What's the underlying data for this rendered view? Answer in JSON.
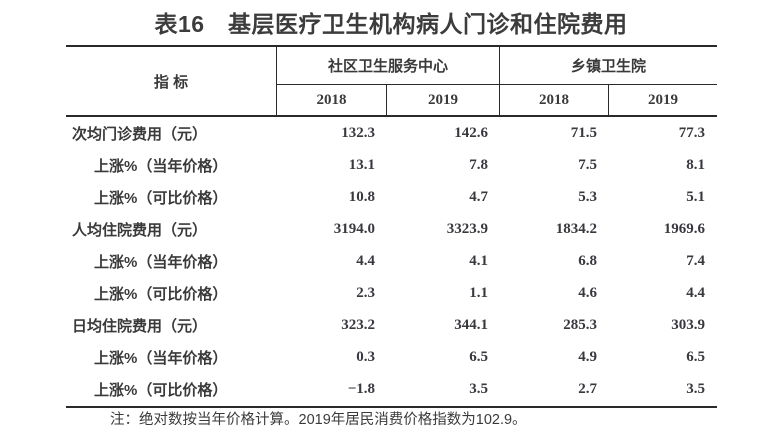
{
  "title": "表16　基层医疗卫生机构病人门诊和住院费用",
  "table": {
    "indicator_header": "指 标",
    "groups": [
      {
        "label": "社区卫生服务中心",
        "years": [
          "2018",
          "2019"
        ]
      },
      {
        "label": "乡镇卫生院",
        "years": [
          "2018",
          "2019"
        ]
      }
    ],
    "rows": [
      {
        "label": "次均门诊费用（元）",
        "values": [
          "132.3",
          "142.6",
          "71.5",
          "77.3"
        ]
      },
      {
        "label": "上涨%（当年价格）",
        "values": [
          "13.1",
          "7.8",
          "7.5",
          "8.1"
        ]
      },
      {
        "label": "上涨%（可比价格）",
        "values": [
          "10.8",
          "4.7",
          "5.3",
          "5.1"
        ]
      },
      {
        "label": "人均住院费用（元）",
        "values": [
          "3194.0",
          "3323.9",
          "1834.2",
          "1969.6"
        ]
      },
      {
        "label": "上涨%（当年价格）",
        "values": [
          "4.4",
          "4.1",
          "6.8",
          "7.4"
        ]
      },
      {
        "label": "上涨%（可比价格）",
        "values": [
          "2.3",
          "1.1",
          "4.6",
          "4.4"
        ]
      },
      {
        "label": "日均住院费用（元）",
        "values": [
          "323.2",
          "344.1",
          "285.3",
          "303.9"
        ]
      },
      {
        "label": "上涨%（当年价格）",
        "values": [
          "0.3",
          "6.5",
          "4.9",
          "6.5"
        ]
      },
      {
        "label": "上涨%（可比价格）",
        "values": [
          "−1.8",
          "3.5",
          "2.7",
          "3.5"
        ]
      }
    ]
  },
  "footnote": "注：绝对数按当年价格计算。2019年居民消费价格指数为102.9。",
  "colors": {
    "text": "#3a3a3a",
    "line": "#2a2a2a",
    "background": "#ffffff"
  }
}
